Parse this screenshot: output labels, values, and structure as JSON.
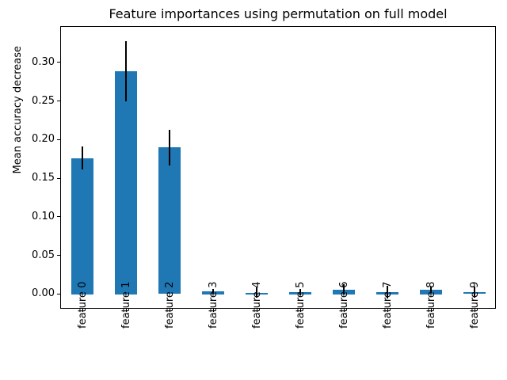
{
  "chart_data": {
    "type": "bar",
    "title": "Feature importances using permutation on full model",
    "xlabel": "",
    "ylabel": "Mean accuracy decrease",
    "categories": [
      "feature 0",
      "feature 1",
      "feature 2",
      "feature 3",
      "feature 4",
      "feature 5",
      "feature 6",
      "feature 7",
      "feature 8",
      "feature 9"
    ],
    "values": [
      0.176,
      0.289,
      0.19,
      0.004,
      0.002,
      0.003,
      0.006,
      0.003,
      0.006,
      0.0025
    ],
    "errors": [
      0.015,
      0.039,
      0.023,
      0.003,
      0.0065,
      0.004,
      0.0065,
      0.008,
      0.004,
      0.007
    ],
    "yticks": [
      0.0,
      0.05,
      0.1,
      0.15,
      0.2,
      0.25,
      0.3
    ],
    "ytick_labels": [
      "0.00",
      "0.05",
      "0.10",
      "0.15",
      "0.20",
      "0.25",
      "0.30"
    ],
    "ylim": [
      -0.019,
      0.347
    ],
    "bar_color": "#1f77b4",
    "error_color": "#000000",
    "grid": false,
    "legend_position": "none"
  }
}
